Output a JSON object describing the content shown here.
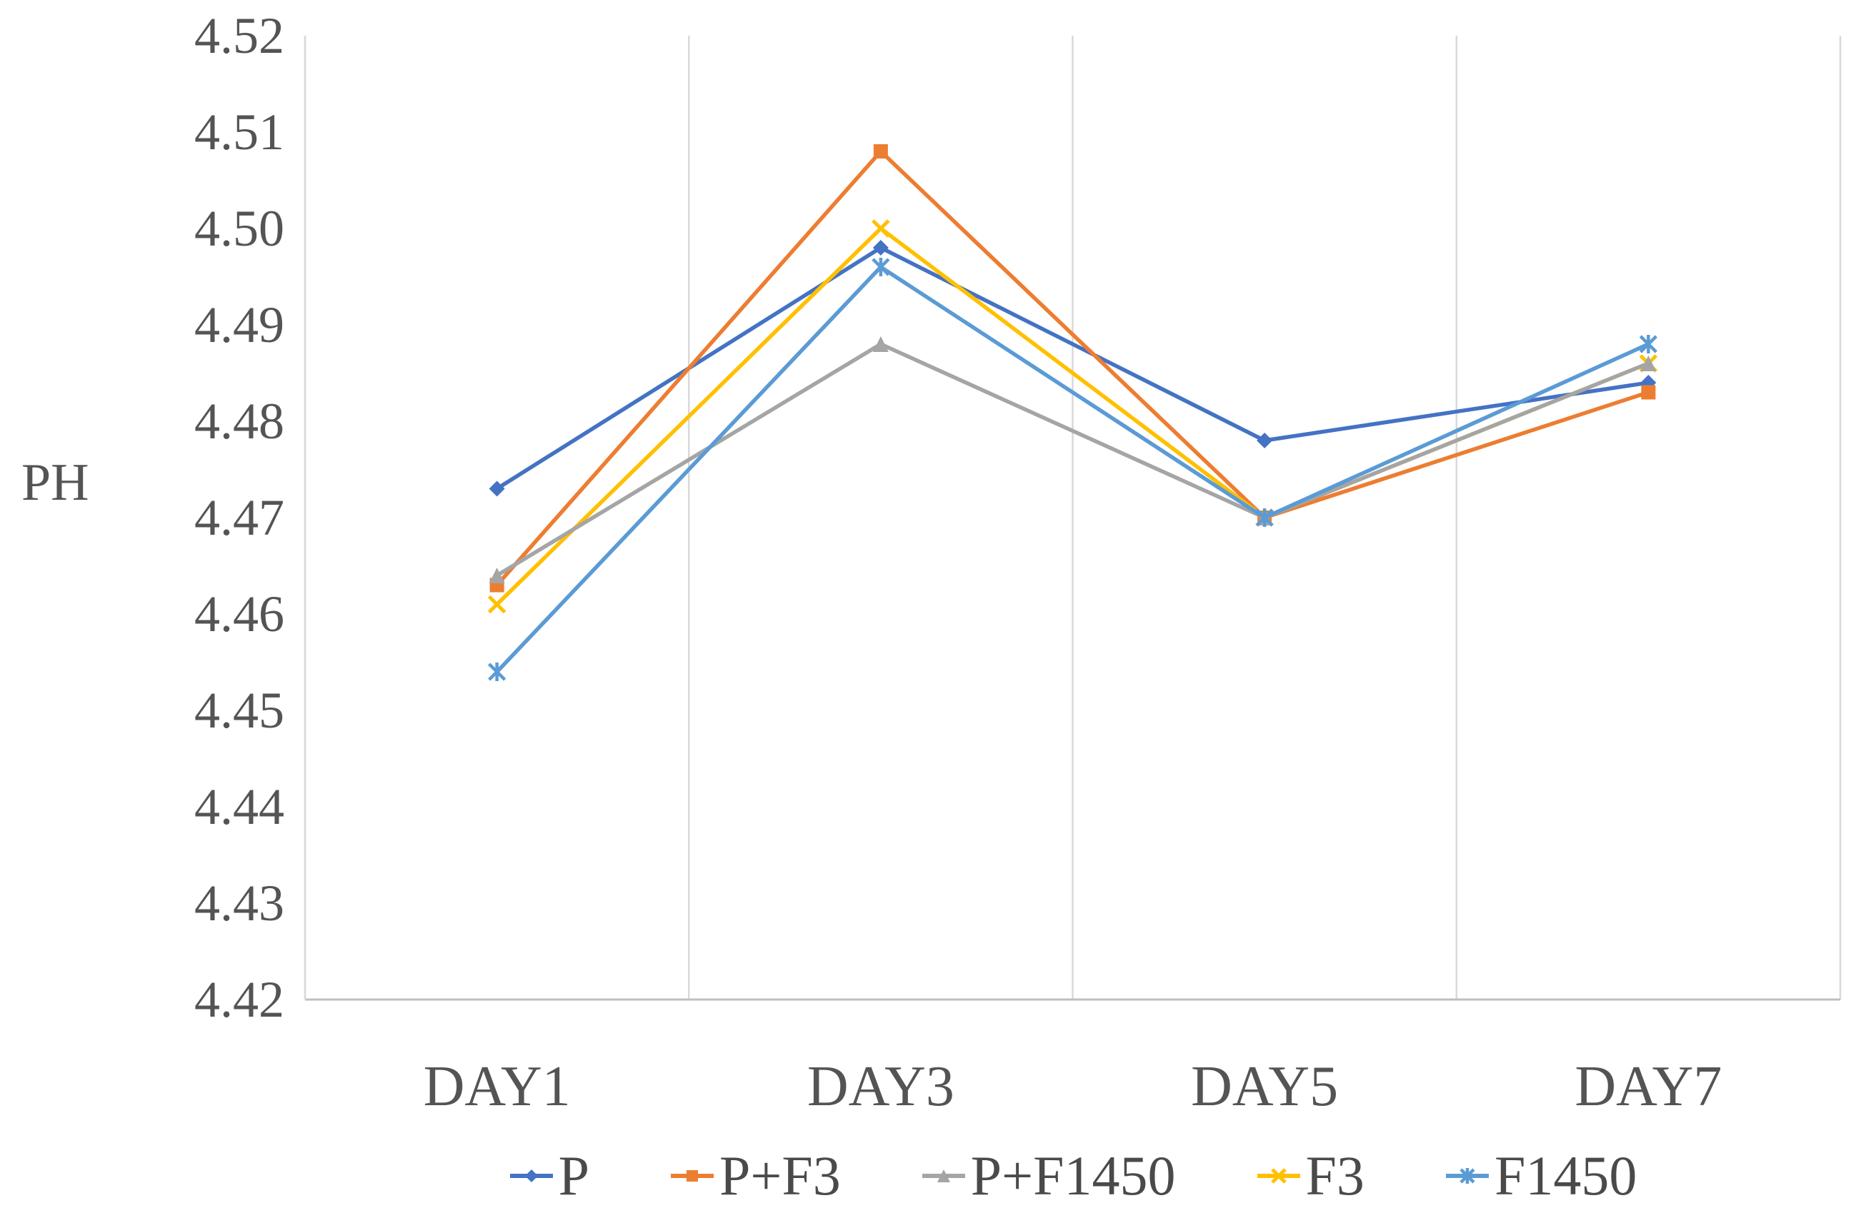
{
  "chart_data": {
    "type": "line",
    "title": "",
    "ylabel": "PH",
    "xlabel": "",
    "categories": [
      "DAY1",
      "DAY3",
      "DAY5",
      "DAY7"
    ],
    "ylim": [
      4.42,
      4.52
    ],
    "ytick_step": 0.01,
    "ytick_labels": [
      "4.42",
      "4.43",
      "4.44",
      "4.45",
      "4.46",
      "4.47",
      "4.48",
      "4.49",
      "4.50",
      "4.51",
      "4.52"
    ],
    "grid": "vertical-only",
    "gridline_color": "#D9D9D9",
    "axis_line_color": "#BFBFBF",
    "tick_label_color": "#545454",
    "legend_position": "bottom",
    "series": [
      {
        "name": "P",
        "color": "#4472C4",
        "marker": "diamond",
        "values": [
          4.473,
          4.498,
          4.478,
          4.484
        ]
      },
      {
        "name": "P+F3",
        "color": "#ED7D31",
        "marker": "square",
        "values": [
          4.463,
          4.508,
          4.47,
          4.483
        ]
      },
      {
        "name": "P+F1450",
        "color": "#A5A5A5",
        "marker": "triangle",
        "values": [
          4.464,
          4.488,
          4.47,
          4.486
        ]
      },
      {
        "name": "F3",
        "color": "#FFC000",
        "marker": "x",
        "values": [
          4.461,
          4.5,
          4.47,
          4.486
        ]
      },
      {
        "name": "F1450",
        "color": "#5B9BD5",
        "marker": "asterisk",
        "values": [
          4.454,
          4.496,
          4.47,
          4.488
        ]
      }
    ]
  }
}
